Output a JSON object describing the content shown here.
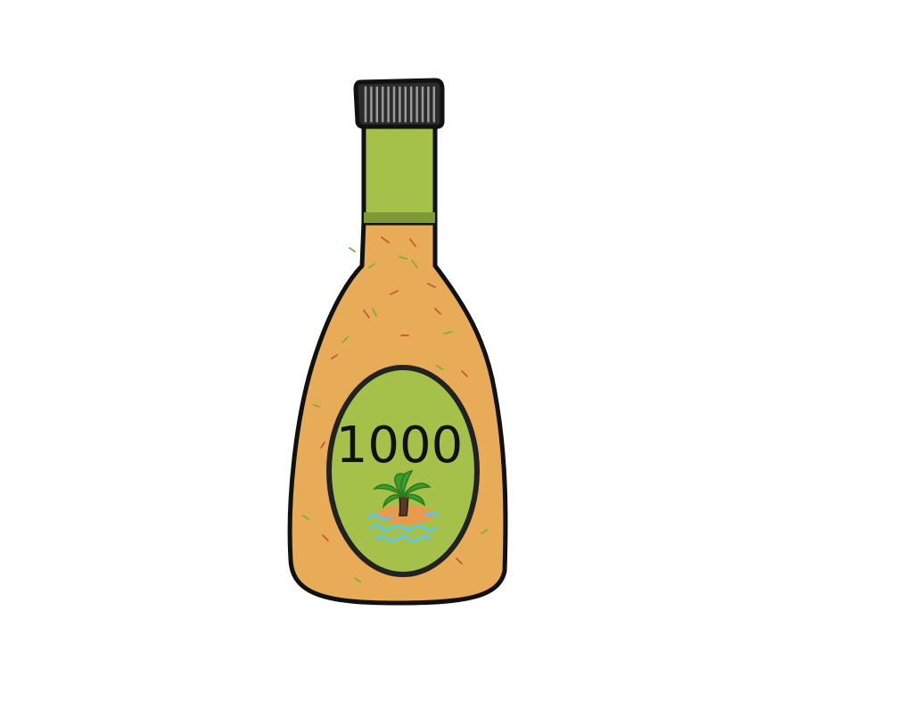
{
  "illustration": {
    "subject": "salad-dressing-bottle",
    "label_text": "1000",
    "colors": {
      "background": "#ffffff",
      "outline": "#111111",
      "cap": "#2b2b2b",
      "cap_ridge": "#9a9a9a",
      "neck_green": "#a6c14a",
      "neck_band": "#7e9a36",
      "dressing": "#e8ab57",
      "label_green": "#a6c14a",
      "palm_leaf": "#3f9b2c",
      "palm_trunk": "#5a3a22",
      "island_sand": "#e79b4e",
      "water": "#5bc8f2",
      "fleck_red": "#c9573b",
      "fleck_green": "#7fae3a"
    },
    "icons": [
      "palm-tree-icon",
      "island-icon",
      "water-waves-icon"
    ]
  }
}
